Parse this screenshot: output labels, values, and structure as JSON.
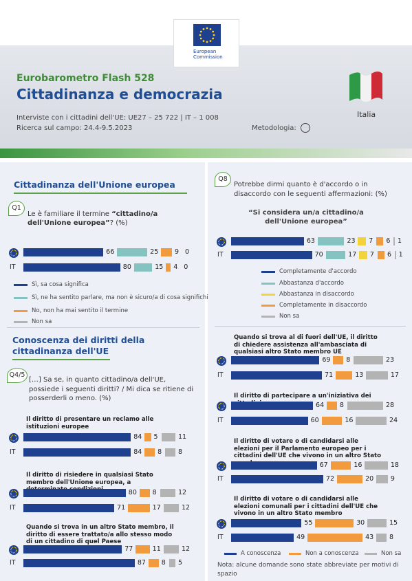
{
  "header": {
    "logo_text": "European Commission",
    "series": "Eurobarometro Flash 528",
    "title": "Cittadinanza e democrazia",
    "interviews": "Interviste con i cittadini dell'UE: UE27 – 25 722 | IT – 1 008",
    "fieldwork": "Ricerca sul campo: 24.4-9.5.2023",
    "methodology": "Metodologia:",
    "country": "Italia"
  },
  "country_code": "IT",
  "q1": {
    "section": "Cittadinanza dell'Unione europea",
    "number": "Q1",
    "question_pre": "Le è familiare il termine ",
    "question_bold": "“cittadino/a dell'Unione europea”",
    "question_post": "? (%)",
    "rows": [
      [
        66,
        25,
        9,
        0
      ],
      [
        80,
        15,
        4,
        0
      ]
    ],
    "legend": [
      {
        "label": "Sì, sa cosa significa",
        "color": "#1f3f8f"
      },
      {
        "label": "Sì, ne ha sentito parlare, ma non è sicuro/a di cosa significhi",
        "color": "#85c3c0"
      },
      {
        "label": "No, non ha mai sentito il termine",
        "color": "#f19a3e"
      },
      {
        "label": "Non sa",
        "color": "#b3b3b3"
      }
    ]
  },
  "q8": {
    "number": "Q8",
    "question": "Potrebbe dirmi quanto è d'accordo o in disaccordo con le seguenti affermazioni: (%)",
    "statement": "“Si considera un/a cittadino/a dell'Unione europea”",
    "rows": [
      [
        63,
        23,
        7,
        6,
        1
      ],
      [
        70,
        17,
        7,
        6,
        1
      ]
    ],
    "legend": [
      {
        "label": "Completamente d'accordo",
        "color": "#1f3f8f"
      },
      {
        "label": "Abbastanza d'accordo",
        "color": "#85c3c0"
      },
      {
        "label": "Abbastanza in disaccordo",
        "color": "#f2d43a"
      },
      {
        "label": "Completamente in disaccordo",
        "color": "#f19a3e"
      },
      {
        "label": "Non sa",
        "color": "#b3b3b3"
      }
    ]
  },
  "rights": {
    "section": "Conoscenza dei diritti della cittadinanza dell'UE",
    "number": "Q4/5",
    "question": "[…] Sa se, in quanto cittadino/a dell'UE, possiede i seguenti diritti? / Mi dica se ritiene di posserderli o meno. (%)",
    "items": [
      {
        "label": "Il diritto di presentare un reclamo alle istituzioni europee",
        "rows": [
          [
            84,
            5,
            11
          ],
          [
            84,
            8,
            8
          ]
        ]
      },
      {
        "label": "Il diritto di risiedere in qualsiasi Stato membro dell'Unione europea, a determinate condizioni",
        "rows": [
          [
            80,
            8,
            12
          ],
          [
            71,
            17,
            12
          ]
        ]
      },
      {
        "label": "Quando si trova in un altro Stato membro, il diritto di essere trattato/a allo stesso modo di un cittadino di quel Paese",
        "rows": [
          [
            77,
            11,
            12
          ],
          [
            87,
            8,
            5
          ]
        ]
      },
      {
        "label": "Quando si trova al di fuori dell'UE, il diritto di chiedere assistenza all'ambasciata di qualsiasi altro Stato membro UE",
        "rows": [
          [
            69,
            8,
            23
          ],
          [
            71,
            13,
            17
          ]
        ]
      },
      {
        "label": "Il diritto di partecipare a un'iniziativa dei cittadini",
        "rows": [
          [
            64,
            8,
            28
          ],
          [
            60,
            16,
            24
          ]
        ]
      },
      {
        "label": "Il diritto di votare o di candidarsi alle elezioni per il Parlamento europeo per i cittadini dell'UE che vivono in un altro Stato membro",
        "rows": [
          [
            67,
            16,
            18
          ],
          [
            72,
            20,
            9
          ]
        ]
      },
      {
        "label": "Il diritto di votare o di candidarsi alle elezioni comunali per i cittadini dell'UE che vivono in un altro Stato membro",
        "rows": [
          [
            55,
            30,
            15
          ],
          [
            49,
            43,
            8
          ]
        ]
      }
    ],
    "legend": [
      {
        "label": "A conoscenza",
        "color": "#1f3f8f"
      },
      {
        "label": "Non a conoscenza",
        "color": "#f19a3e"
      },
      {
        "label": "Non sa",
        "color": "#b3b3b3"
      }
    ]
  },
  "note": "Nota: alcune domande sono state abbreviate per motivi di spazio"
}
